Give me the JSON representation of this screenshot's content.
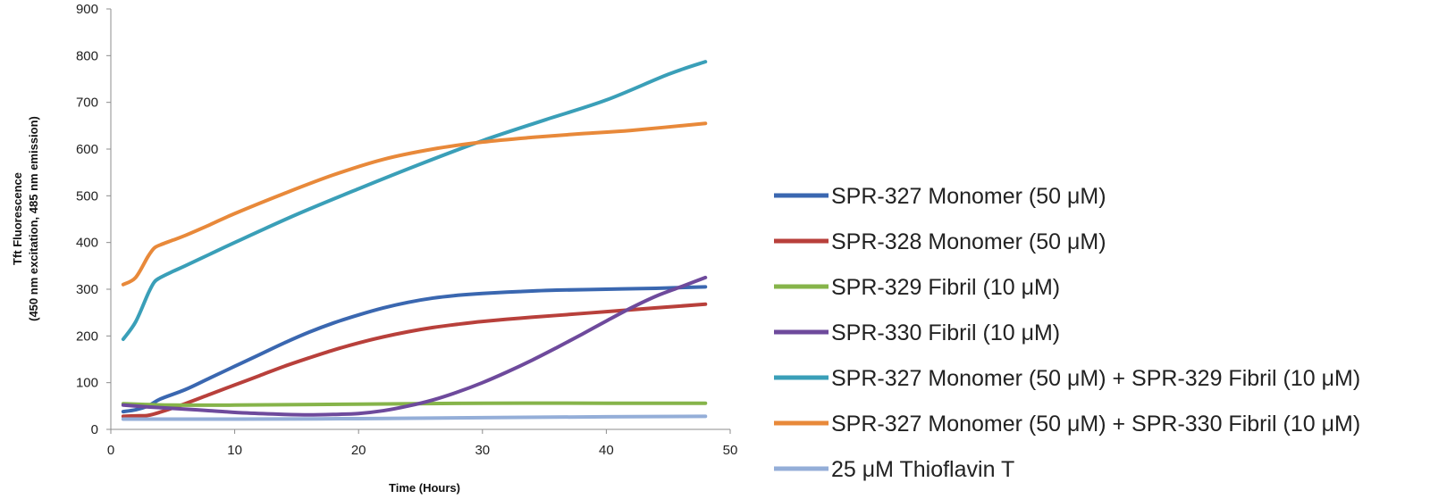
{
  "chart_data": {
    "type": "line",
    "title": "",
    "xlabel": "Time (Hours)",
    "ylabel_line1": "Tft Fluorescence",
    "ylabel_line2": "(450 nm excitation, 485 nm emission)",
    "xlim": [
      0,
      50
    ],
    "ylim": [
      0,
      900
    ],
    "xticks": [
      0,
      10,
      20,
      30,
      40,
      50
    ],
    "yticks": [
      0,
      100,
      200,
      300,
      400,
      500,
      600,
      700,
      800,
      900
    ],
    "grid": false,
    "legend_position": "right",
    "series": [
      {
        "name": "SPR-327 Monomer (50 μM)",
        "color": "#3a67b0",
        "x": [
          1,
          2,
          3,
          4,
          6,
          8,
          10,
          12,
          14,
          16,
          18,
          20,
          22,
          24,
          26,
          28,
          30,
          33,
          36,
          40,
          44,
          48
        ],
        "y": [
          38,
          42,
          50,
          65,
          85,
          110,
          135,
          160,
          185,
          208,
          228,
          245,
          260,
          272,
          281,
          287,
          291,
          295,
          298,
          300,
          302,
          305
        ]
      },
      {
        "name": "SPR-328 Monomer (50 μM)",
        "color": "#b8403b",
        "x": [
          1,
          2,
          3,
          4,
          6,
          8,
          10,
          12,
          14,
          16,
          18,
          20,
          22,
          24,
          26,
          28,
          30,
          33,
          36,
          40,
          44,
          48
        ],
        "y": [
          28,
          29,
          30,
          37,
          55,
          75,
          95,
          115,
          135,
          153,
          170,
          185,
          198,
          209,
          218,
          225,
          231,
          238,
          244,
          252,
          260,
          268
        ]
      },
      {
        "name": "SPR-329 Fibril (10 μM)",
        "color": "#86b44a",
        "x": [
          1,
          5,
          10,
          20,
          30,
          40,
          48
        ],
        "y": [
          55,
          52,
          52,
          54,
          56,
          56,
          56
        ]
      },
      {
        "name": "SPR-330 Fibril (10 μM)",
        "color": "#6e4a9c",
        "x": [
          1,
          3,
          5,
          8,
          11,
          14,
          16,
          18,
          20,
          22,
          24,
          26,
          28,
          30,
          32,
          34,
          36,
          38,
          40,
          42,
          44,
          46,
          48
        ],
        "y": [
          52,
          48,
          45,
          40,
          35,
          32,
          31,
          32,
          34,
          40,
          50,
          63,
          80,
          100,
          123,
          148,
          175,
          203,
          232,
          260,
          285,
          305,
          325
        ]
      },
      {
        "name": "SPR-327 Monomer (50 μM) + SPR-329 Fibril (10 μM)",
        "color": "#3a9fb8",
        "x": [
          1,
          2,
          3,
          3.5,
          4,
          5,
          6,
          8,
          10,
          15,
          20,
          25,
          30,
          35,
          40,
          45,
          48
        ],
        "y": [
          193,
          230,
          290,
          315,
          325,
          338,
          350,
          375,
          400,
          460,
          515,
          568,
          618,
          662,
          705,
          760,
          787
        ]
      },
      {
        "name": "SPR-327 Monomer (50 μM) + SPR-330 Fibril (10 μM)",
        "color": "#e8893a",
        "x": [
          1,
          2,
          3,
          3.5,
          4,
          5,
          6,
          8,
          10,
          14,
          18,
          22,
          26,
          30,
          34,
          38,
          42,
          48
        ],
        "y": [
          310,
          325,
          370,
          388,
          395,
          405,
          415,
          438,
          462,
          505,
          545,
          578,
          600,
          615,
          625,
          633,
          640,
          655
        ]
      },
      {
        "name": "25 μM Thioflavin T",
        "color": "#94aed8",
        "x": [
          1,
          10,
          20,
          30,
          40,
          48
        ],
        "y": [
          22,
          22,
          23,
          25,
          27,
          28
        ]
      }
    ]
  }
}
